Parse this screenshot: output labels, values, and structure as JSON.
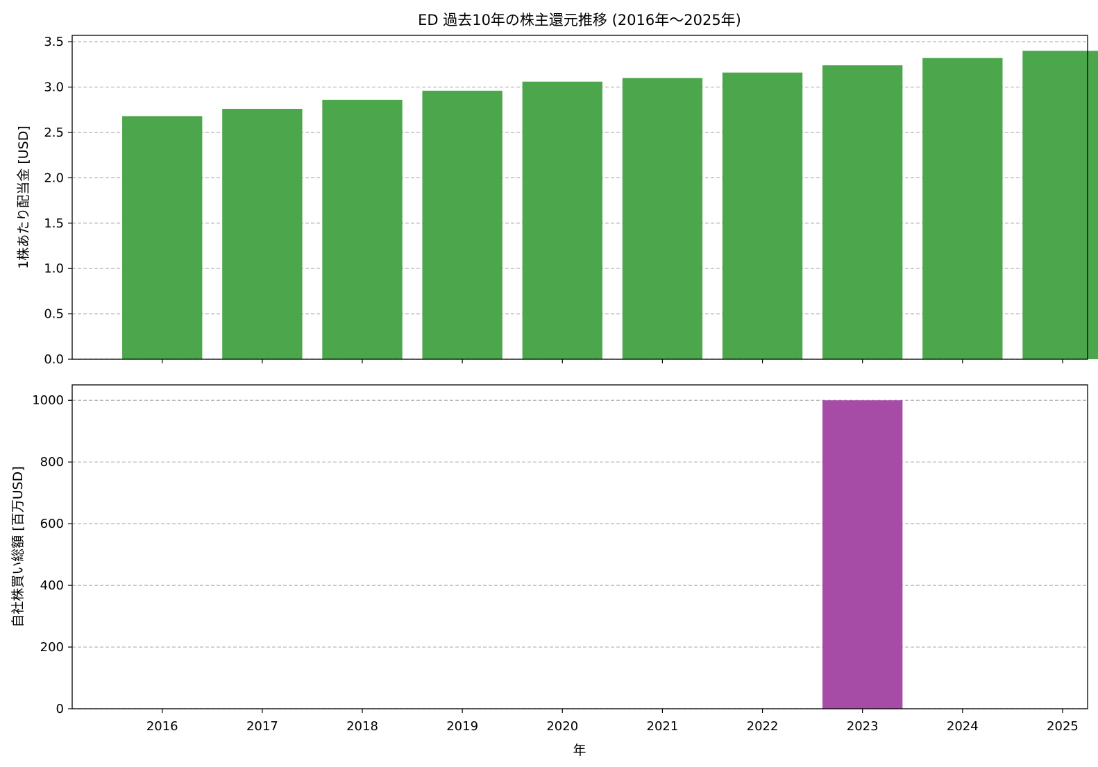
{
  "chart_data": {
    "title": "ED 過去10年の株主還元推移 (2016年～2025年)",
    "xlabel": "年",
    "categories": [
      "2016",
      "2017",
      "2018",
      "2019",
      "2020",
      "2021",
      "2022",
      "2023",
      "2024",
      "2025"
    ],
    "grid": "y-dashed",
    "charts": [
      {
        "type": "bar",
        "ylabel": "1株あたり配当金 [USD]",
        "ylim": [
          0,
          3.57
        ],
        "yticks": [
          0.0,
          0.5,
          1.0,
          1.5,
          2.0,
          2.5,
          3.0,
          3.5
        ],
        "ytick_labels": [
          "0.0",
          "0.5",
          "1.0",
          "1.5",
          "2.0",
          "2.5",
          "3.0",
          "3.5"
        ],
        "color": "#4ca64c",
        "values": [
          2.68,
          2.76,
          2.86,
          2.96,
          3.06,
          3.1,
          3.16,
          3.24,
          3.32,
          3.4
        ]
      },
      {
        "type": "bar",
        "ylabel": "自社株買い総額 [百万USD]",
        "ylim": [
          0,
          1050
        ],
        "yticks": [
          0,
          200,
          400,
          600,
          800,
          1000
        ],
        "ytick_labels": [
          "0",
          "200",
          "400",
          "600",
          "800",
          "1000"
        ],
        "color": "#a64ca6",
        "values": [
          0,
          0,
          0,
          0,
          0,
          0,
          0,
          1000,
          0,
          0
        ]
      }
    ]
  }
}
